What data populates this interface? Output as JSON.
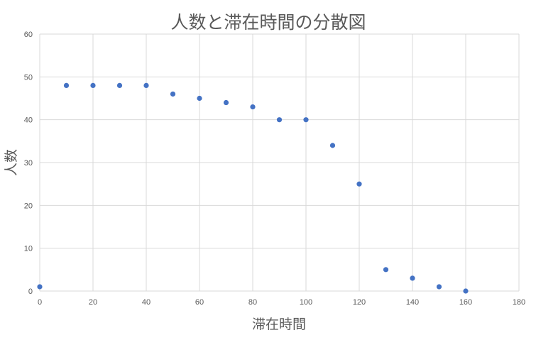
{
  "chart_data": {
    "type": "scatter",
    "title": "人数と滞在時間の分散図",
    "xlabel": "滞在時間",
    "ylabel": "人数",
    "xlim": [
      0,
      180
    ],
    "ylim": [
      0,
      60
    ],
    "x_ticks": [
      0,
      20,
      40,
      60,
      80,
      100,
      120,
      140,
      160,
      180
    ],
    "y_ticks": [
      0,
      10,
      20,
      30,
      40,
      50,
      60
    ],
    "grid": true,
    "legend": "none",
    "series": [
      {
        "color": "#4472c4",
        "points": [
          {
            "x": 0,
            "y": 1
          },
          {
            "x": 10,
            "y": 48
          },
          {
            "x": 20,
            "y": 48
          },
          {
            "x": 30,
            "y": 48
          },
          {
            "x": 40,
            "y": 48
          },
          {
            "x": 50,
            "y": 46
          },
          {
            "x": 60,
            "y": 45
          },
          {
            "x": 70,
            "y": 44
          },
          {
            "x": 80,
            "y": 43
          },
          {
            "x": 90,
            "y": 40
          },
          {
            "x": 100,
            "y": 40
          },
          {
            "x": 110,
            "y": 34
          },
          {
            "x": 120,
            "y": 25
          },
          {
            "x": 130,
            "y": 5
          },
          {
            "x": 140,
            "y": 3
          },
          {
            "x": 150,
            "y": 1
          },
          {
            "x": 160,
            "y": 0
          }
        ]
      }
    ]
  }
}
